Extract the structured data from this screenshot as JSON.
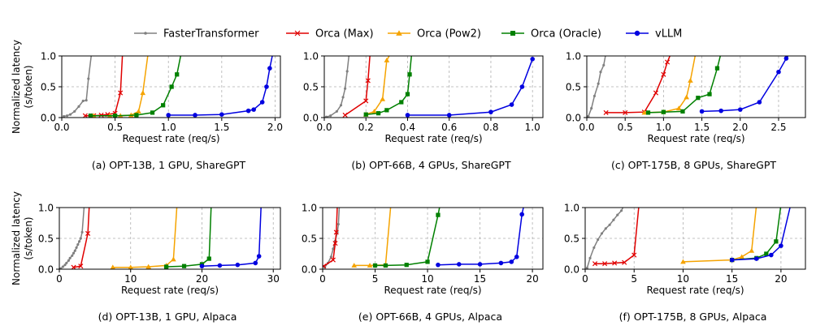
{
  "legend": {
    "placement": "top",
    "entries": [
      {
        "name": "FasterTransformer",
        "color": "#808080",
        "marker": "dot"
      },
      {
        "name": "Orca (Max)",
        "color": "#e00000",
        "marker": "x"
      },
      {
        "name": "Orca (Pow2)",
        "color": "#f5a300",
        "marker": "triangle"
      },
      {
        "name": "Orca (Oracle)",
        "color": "#008000",
        "marker": "square"
      },
      {
        "name": "vLLM",
        "color": "#0000e0",
        "marker": "circle"
      }
    ]
  },
  "row_ylabels": [
    "Normalized latency\n(s/token)",
    "Normalized latency\n(s/token)"
  ],
  "chart_data": [
    {
      "type": "line",
      "caption": "(a) OPT-13B, 1 GPU, ShareGPT",
      "xlabel": "Request rate (req/s)",
      "ylabel": "",
      "xlim": [
        0,
        2.05
      ],
      "ylim": [
        0,
        1.0
      ],
      "xticks": [
        0.0,
        0.5,
        1.0,
        1.5,
        2.0
      ],
      "xtick_labels": [
        "0.0",
        "0.5",
        "1.0",
        "1.5",
        "2.0"
      ],
      "yticks": [
        0.0,
        0.5,
        1.0
      ],
      "ytick_labels": [
        "0.0",
        "0.5",
        "1.0"
      ],
      "grid": true,
      "series": [
        {
          "name": "FasterTransformer",
          "x": [
            0.02,
            0.05,
            0.08,
            0.12,
            0.16,
            0.2,
            0.23,
            0.25,
            0.28
          ],
          "y": [
            0.02,
            0.03,
            0.05,
            0.1,
            0.18,
            0.27,
            0.28,
            0.63,
            1.05
          ]
        },
        {
          "name": "Orca (Max)",
          "x": [
            0.22,
            0.3,
            0.37,
            0.43,
            0.5,
            0.55,
            0.57
          ],
          "y": [
            0.03,
            0.03,
            0.04,
            0.05,
            0.07,
            0.4,
            1.05
          ]
        },
        {
          "name": "Orca (Pow2)",
          "x": [
            0.3,
            0.45,
            0.55,
            0.65,
            0.72,
            0.76,
            0.81
          ],
          "y": [
            0.03,
            0.03,
            0.03,
            0.04,
            0.1,
            0.4,
            1.05
          ]
        },
        {
          "name": "Orca (Oracle)",
          "x": [
            0.27,
            0.5,
            0.7,
            0.85,
            0.95,
            1.03,
            1.08,
            1.12
          ],
          "y": [
            0.03,
            0.03,
            0.04,
            0.08,
            0.2,
            0.5,
            0.7,
            1.05
          ]
        },
        {
          "name": "vLLM",
          "x": [
            1.0,
            1.25,
            1.5,
            1.75,
            1.8,
            1.88,
            1.92,
            1.95,
            1.98
          ],
          "y": [
            0.04,
            0.04,
            0.05,
            0.11,
            0.13,
            0.25,
            0.5,
            0.8,
            1.05
          ]
        }
      ]
    },
    {
      "type": "line",
      "caption": "(b) OPT-66B, 4 GPUs, ShareGPT",
      "xlabel": "Request rate (req/s)",
      "ylabel": "",
      "xlim": [
        0,
        1.05
      ],
      "ylim": [
        0,
        1.0
      ],
      "xticks": [
        0.0,
        0.2,
        0.4,
        0.6,
        0.8,
        1.0
      ],
      "xtick_labels": [
        "0.0",
        "0.2",
        "0.4",
        "0.6",
        "0.8",
        "1.0"
      ],
      "yticks": [
        0.0,
        0.5,
        1.0
      ],
      "ytick_labels": [
        "0.0",
        "0.5",
        "1.0"
      ],
      "grid": true,
      "series": [
        {
          "name": "FasterTransformer",
          "x": [
            0.01,
            0.03,
            0.06,
            0.08,
            0.09,
            0.1,
            0.11,
            0.12
          ],
          "y": [
            0.01,
            0.03,
            0.1,
            0.2,
            0.33,
            0.47,
            0.75,
            1.05
          ]
        },
        {
          "name": "Orca (Max)",
          "x": [
            0.1,
            0.2,
            0.21,
            0.22
          ],
          "y": [
            0.04,
            0.27,
            0.6,
            1.05
          ]
        },
        {
          "name": "Orca (Pow2)",
          "x": [
            0.2,
            0.24,
            0.28,
            0.3,
            0.32
          ],
          "y": [
            0.05,
            0.1,
            0.3,
            0.93,
            1.05
          ]
        },
        {
          "name": "Orca (Oracle)",
          "x": [
            0.2,
            0.26,
            0.3,
            0.37,
            0.4,
            0.41,
            0.42
          ],
          "y": [
            0.05,
            0.07,
            0.12,
            0.25,
            0.38,
            0.7,
            1.05
          ]
        },
        {
          "name": "vLLM",
          "x": [
            0.4,
            0.6,
            0.8,
            0.9,
            0.95,
            1.0
          ],
          "y": [
            0.04,
            0.04,
            0.09,
            0.21,
            0.5,
            0.95
          ]
        }
      ]
    },
    {
      "type": "line",
      "caption": "(c) OPT-175B, 8 GPUs, ShareGPT",
      "xlabel": "Request rate (req/s)",
      "ylabel": "",
      "xlim": [
        0,
        2.85
      ],
      "ylim": [
        0,
        1.0
      ],
      "xticks": [
        0.0,
        0.5,
        1.0,
        1.5,
        2.0,
        2.5
      ],
      "xtick_labels": [
        "0.0",
        "0.5",
        "1.0",
        "1.5",
        "2.0",
        "2.5"
      ],
      "yticks": [
        0.0,
        0.5,
        1.0
      ],
      "ytick_labels": [
        "0.0",
        "0.5",
        "1.0"
      ],
      "grid": true,
      "series": [
        {
          "name": "FasterTransformer",
          "x": [
            0.02,
            0.06,
            0.1,
            0.15,
            0.18,
            0.22,
            0.25
          ],
          "y": [
            0.02,
            0.15,
            0.35,
            0.55,
            0.74,
            0.85,
            1.05
          ]
        },
        {
          "name": "Orca (Max)",
          "x": [
            0.25,
            0.5,
            0.75,
            0.9,
            1.0,
            1.05,
            1.1
          ],
          "y": [
            0.08,
            0.08,
            0.09,
            0.4,
            0.7,
            0.9,
            1.05
          ]
        },
        {
          "name": "Orca (Pow2)",
          "x": [
            0.75,
            1.0,
            1.2,
            1.3,
            1.35,
            1.42
          ],
          "y": [
            0.08,
            0.09,
            0.15,
            0.33,
            0.6,
            1.05
          ]
        },
        {
          "name": "Orca (Oracle)",
          "x": [
            0.8,
            1.0,
            1.25,
            1.45,
            1.6,
            1.7,
            1.75
          ],
          "y": [
            0.08,
            0.09,
            0.1,
            0.32,
            0.38,
            0.8,
            1.05
          ]
        },
        {
          "name": "vLLM",
          "x": [
            1.5,
            1.75,
            2.0,
            2.25,
            2.5,
            2.6,
            2.65
          ],
          "y": [
            0.1,
            0.11,
            0.13,
            0.25,
            0.74,
            0.96,
            1.05
          ]
        }
      ]
    },
    {
      "type": "line",
      "caption": "(d) OPT-13B, 1 GPU, Alpaca",
      "xlabel": "Request rate (req/s)",
      "ylabel": "",
      "xlim": [
        0,
        31
      ],
      "ylim": [
        0,
        1.0
      ],
      "xticks": [
        0,
        10,
        20,
        30
      ],
      "xtick_labels": [
        "0",
        "10",
        "20",
        "30"
      ],
      "yticks": [
        0.0,
        0.5,
        1.0
      ],
      "ytick_labels": [
        "0.0",
        "0.5",
        "1.0"
      ],
      "grid": true,
      "series": [
        {
          "name": "FasterTransformer",
          "x": [
            0.2,
            0.5,
            0.8,
            1.0,
            1.3,
            1.5,
            1.8,
            2.0,
            2.2,
            2.4,
            2.6,
            2.8,
            3.0,
            3.2,
            3.5
          ],
          "y": [
            0.01,
            0.04,
            0.07,
            0.1,
            0.14,
            0.18,
            0.22,
            0.26,
            0.3,
            0.35,
            0.4,
            0.45,
            0.5,
            0.6,
            1.05
          ]
        },
        {
          "name": "Orca (Max)",
          "x": [
            2.0,
            3.0,
            4.0,
            4.2
          ],
          "y": [
            0.03,
            0.05,
            0.58,
            1.05
          ]
        },
        {
          "name": "Orca (Pow2)",
          "x": [
            7.5,
            10.0,
            12.5,
            15.0,
            16.0,
            16.5
          ],
          "y": [
            0.03,
            0.03,
            0.04,
            0.06,
            0.16,
            1.05
          ]
        },
        {
          "name": "Orca (Oracle)",
          "x": [
            15.0,
            17.5,
            20.0,
            21.0,
            21.3
          ],
          "y": [
            0.04,
            0.05,
            0.08,
            0.17,
            1.05
          ]
        },
        {
          "name": "vLLM",
          "x": [
            20.0,
            22.5,
            25.0,
            27.5,
            28.0,
            28.3
          ],
          "y": [
            0.05,
            0.06,
            0.07,
            0.1,
            0.21,
            1.05
          ]
        }
      ]
    },
    {
      "type": "line",
      "caption": "(e) OPT-66B, 4 GPUs, Alpaca",
      "xlabel": "Request rate (req/s)",
      "ylabel": "",
      "xlim": [
        0,
        21
      ],
      "ylim": [
        0,
        1.0
      ],
      "xticks": [
        0,
        5,
        10,
        15,
        20
      ],
      "xtick_labels": [
        "0",
        "5",
        "10",
        "15",
        "20"
      ],
      "yticks": [
        0.0,
        0.5,
        1.0
      ],
      "ytick_labels": [
        "0.0",
        "0.5",
        "1.0"
      ],
      "grid": true,
      "series": [
        {
          "name": "FasterTransformer",
          "x": [
            0.2,
            0.5,
            0.8,
            1.0,
            1.2,
            1.4,
            1.5,
            1.6
          ],
          "y": [
            0.03,
            0.1,
            0.2,
            0.33,
            0.46,
            0.6,
            0.73,
            1.05
          ]
        },
        {
          "name": "Orca (Max)",
          "x": [
            0.1,
            1.0,
            1.2,
            1.3,
            1.4
          ],
          "y": [
            0.05,
            0.15,
            0.42,
            0.6,
            1.05
          ]
        },
        {
          "name": "Orca (Pow2)",
          "x": [
            3.0,
            4.5,
            6.0,
            6.5
          ],
          "y": [
            0.06,
            0.06,
            0.07,
            1.05
          ]
        },
        {
          "name": "Orca (Oracle)",
          "x": [
            5.0,
            6.0,
            8.0,
            10.0,
            11.0,
            11.2
          ],
          "y": [
            0.06,
            0.06,
            0.07,
            0.12,
            0.88,
            1.05
          ]
        },
        {
          "name": "vLLM",
          "x": [
            11.0,
            13.0,
            15.0,
            17.0,
            18.0,
            18.5,
            19.0,
            19.2
          ],
          "y": [
            0.07,
            0.08,
            0.08,
            0.1,
            0.12,
            0.2,
            0.89,
            1.05
          ]
        }
      ]
    },
    {
      "type": "line",
      "caption": "(f) OPT-175B, 8 GPUs, Alpaca",
      "xlabel": "Request rate (req/s)",
      "ylabel": "",
      "xlim": [
        0,
        22.5
      ],
      "ylim": [
        0,
        1.0
      ],
      "xticks": [
        0,
        5,
        10,
        15,
        20
      ],
      "xtick_labels": [
        "0",
        "5",
        "10",
        "15",
        "20"
      ],
      "yticks": [
        0.0,
        0.5,
        1.0
      ],
      "ytick_labels": [
        "0.0",
        "0.5",
        "1.0"
      ],
      "grid": true,
      "series": [
        {
          "name": "FasterTransformer",
          "x": [
            0.2,
            0.5,
            0.9,
            1.3,
            1.7,
            2.1,
            2.5,
            2.9,
            3.3,
            3.7,
            4.0
          ],
          "y": [
            0.02,
            0.18,
            0.35,
            0.48,
            0.58,
            0.66,
            0.72,
            0.8,
            0.88,
            0.95,
            1.05
          ]
        },
        {
          "name": "Orca (Max)",
          "x": [
            1.0,
            2.0,
            3.0,
            4.0,
            5.0,
            5.5
          ],
          "y": [
            0.09,
            0.09,
            0.1,
            0.11,
            0.23,
            1.05
          ]
        },
        {
          "name": "Orca (Pow2)",
          "x": [
            10.0,
            15.0,
            16.0,
            17.0,
            17.5
          ],
          "y": [
            0.12,
            0.15,
            0.2,
            0.3,
            1.05
          ]
        },
        {
          "name": "Orca (Oracle)",
          "x": [
            15.0,
            17.5,
            18.5,
            19.5,
            20.0
          ],
          "y": [
            0.15,
            0.18,
            0.25,
            0.45,
            1.05
          ]
        },
        {
          "name": "vLLM",
          "x": [
            15.0,
            17.5,
            19.0,
            20.0,
            21.0
          ],
          "y": [
            0.15,
            0.17,
            0.23,
            0.38,
            1.05
          ]
        }
      ]
    }
  ]
}
